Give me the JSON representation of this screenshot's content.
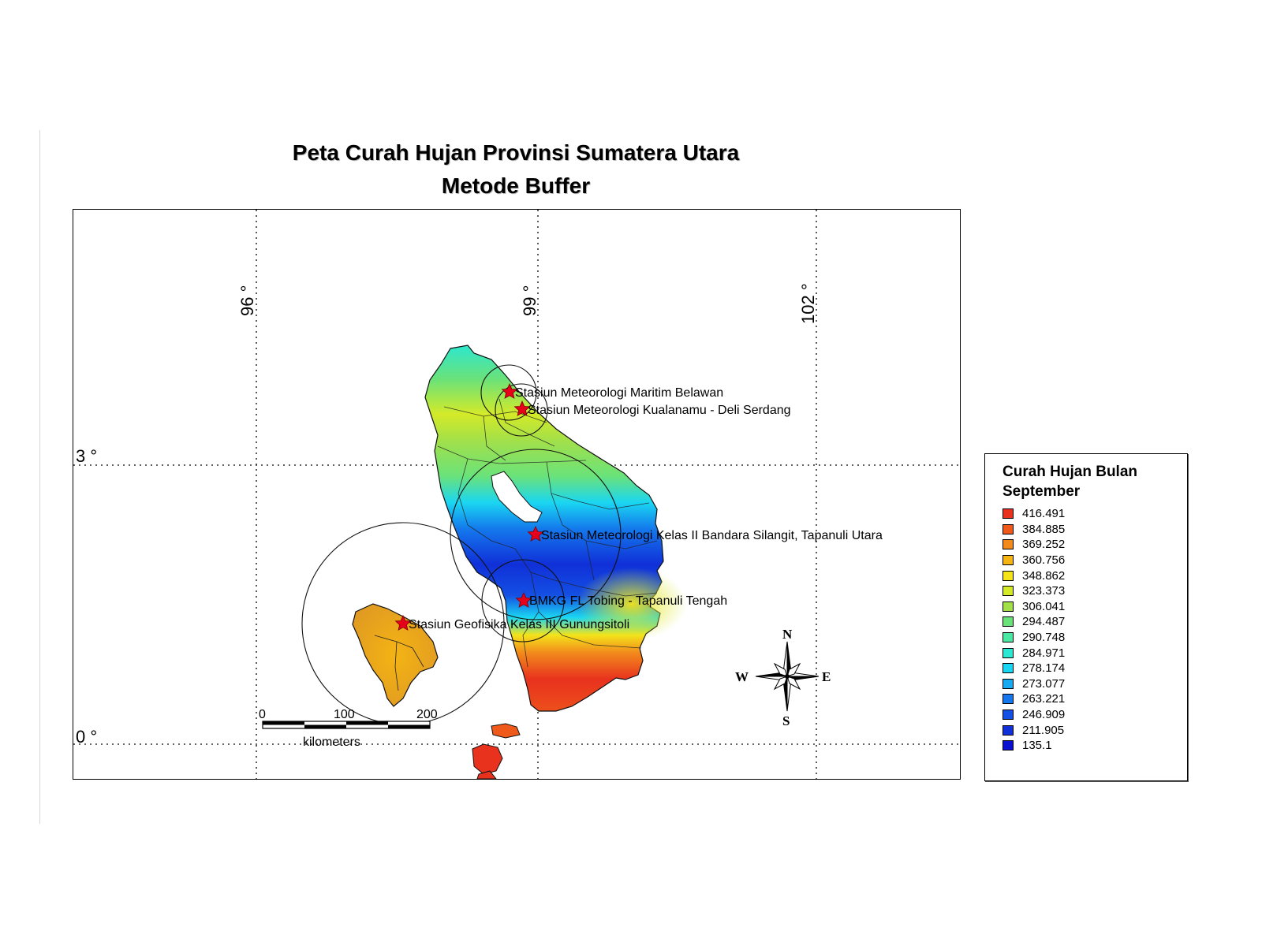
{
  "title": {
    "line1": "Peta Curah Hujan Provinsi Sumatera Utara",
    "line2": "Metode Buffer"
  },
  "map": {
    "graticule": {
      "longitudes": [
        "96 °",
        "99 °",
        "102 °"
      ],
      "latitudes": [
        "3 °",
        "0 °"
      ]
    },
    "stations": [
      {
        "label": "Stasiun Meteorologi Maritim Belawan"
      },
      {
        "label": "Stasiun Meteorologi Kualanamu - Deli Serdang"
      },
      {
        "label": "Stasiun Meteorologi Kelas II Bandara Silangit, Tapanuli Utara"
      },
      {
        "label": "BMKG FL Tobing - Tapanuli Tengah"
      },
      {
        "label": "Stasiun Geofisika Kelas III Gunungsitoli"
      }
    ],
    "scale_bar": {
      "ticks": [
        "0",
        "100",
        "200"
      ],
      "unit": "kilometers"
    },
    "compass": {
      "north": "N",
      "south": "S",
      "east": "E",
      "west": "W"
    }
  },
  "legend": {
    "title": "Curah Hujan Bulan September",
    "items": [
      {
        "value": "416.491",
        "color": "#e8321e"
      },
      {
        "value": "384.885",
        "color": "#ef5a1a"
      },
      {
        "value": "369.252",
        "color": "#f28a1c"
      },
      {
        "value": "360.756",
        "color": "#f4b414"
      },
      {
        "value": "348.862",
        "color": "#f4e41a"
      },
      {
        "value": "323.373",
        "color": "#d4ea28"
      },
      {
        "value": "306.041",
        "color": "#a2e04a"
      },
      {
        "value": "294.487",
        "color": "#6ae27a"
      },
      {
        "value": "290.748",
        "color": "#4ae8a2"
      },
      {
        "value": "284.971",
        "color": "#2ae8d2"
      },
      {
        "value": "278.174",
        "color": "#1ad6f2"
      },
      {
        "value": "273.077",
        "color": "#18aaf0"
      },
      {
        "value": "263.221",
        "color": "#1478ec"
      },
      {
        "value": "246.909",
        "color": "#1450e4"
      },
      {
        "value": "211.905",
        "color": "#1030d8"
      },
      {
        "value": "135.1",
        "color": "#0a10d0"
      }
    ]
  }
}
